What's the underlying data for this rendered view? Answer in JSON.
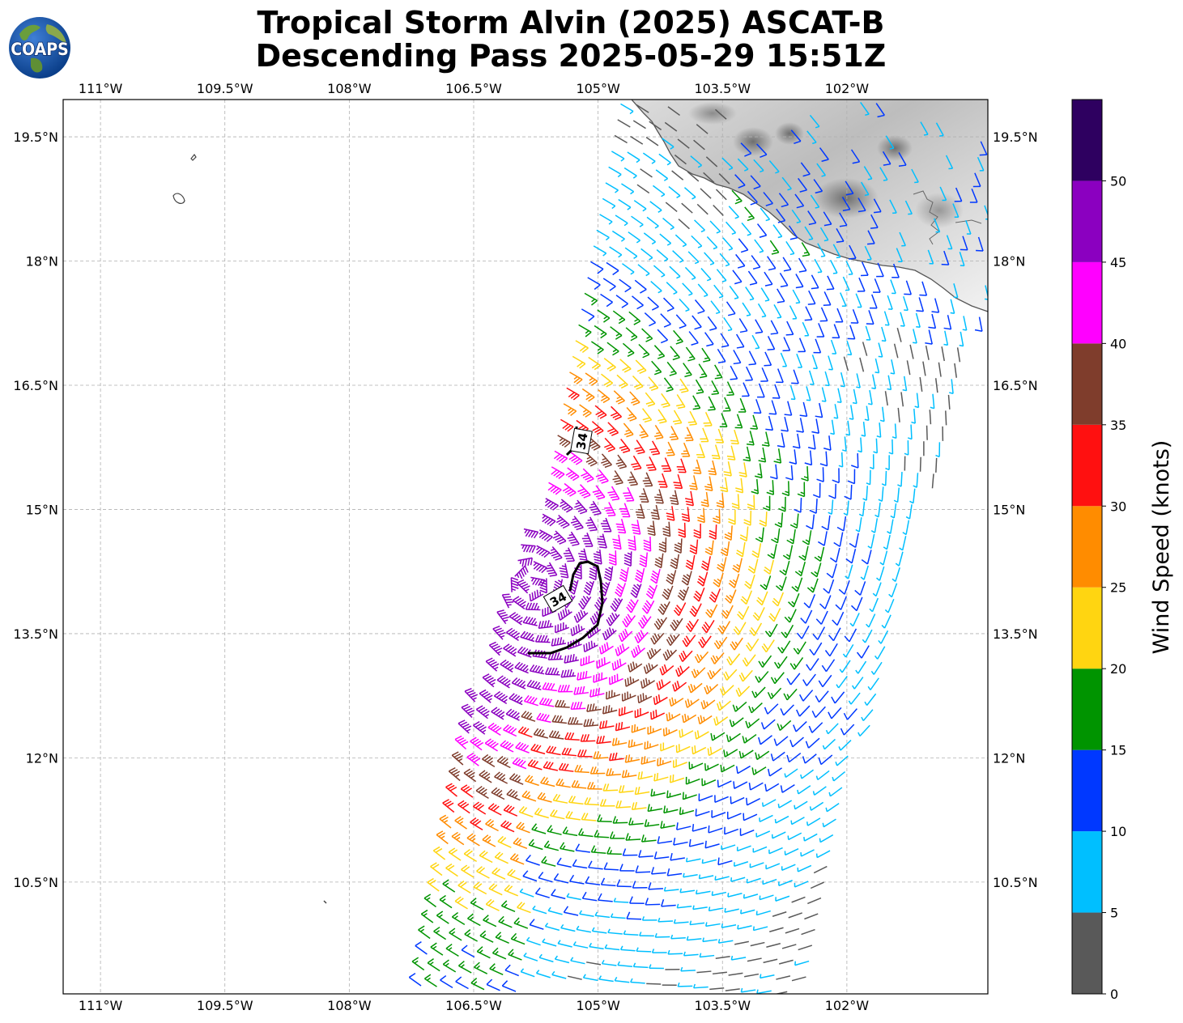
{
  "title_line1": "Tropical Storm Alvin (2025) ASCAT-B",
  "title_line2": "Descending Pass 2025-05-29 15:51Z",
  "logo_text": "COAPS",
  "map": {
    "lon_range": [
      -111.45,
      -100.3
    ],
    "lat_range": [
      9.15,
      19.95
    ],
    "lon_ticks": [
      "111°W",
      "109.5°W",
      "108°W",
      "106.5°W",
      "105°W",
      "103.5°W",
      "102°W"
    ],
    "lon_tick_values": [
      -111,
      -109.5,
      -108,
      -106.5,
      -105,
      -103.5,
      -102
    ],
    "lat_ticks": [
      "19.5°N",
      "18°N",
      "16.5°N",
      "15°N",
      "13.5°N",
      "12°N",
      "10.5°N"
    ],
    "lat_tick_values": [
      19.5,
      18,
      16.5,
      15,
      13.5,
      12,
      10.5
    ],
    "gridlines": true,
    "contour_label": "34",
    "storm_center": [
      -105.8,
      14.1
    ]
  },
  "colorbar": {
    "label": "Wind Speed (knots)",
    "ticks": [
      "0",
      "5",
      "10",
      "15",
      "20",
      "25",
      "30",
      "35",
      "40",
      "45",
      "50"
    ],
    "tick_values": [
      0,
      5,
      10,
      15,
      20,
      25,
      30,
      35,
      40,
      45,
      50
    ],
    "bins": [
      {
        "min": 0,
        "max": 5,
        "color": "#595959"
      },
      {
        "min": 5,
        "max": 10,
        "color": "#00bfff"
      },
      {
        "min": 10,
        "max": 15,
        "color": "#0038ff"
      },
      {
        "min": 15,
        "max": 20,
        "color": "#009400"
      },
      {
        "min": 20,
        "max": 25,
        "color": "#ffd511"
      },
      {
        "min": 25,
        "max": 30,
        "color": "#ff8c00"
      },
      {
        "min": 30,
        "max": 35,
        "color": "#ff1010"
      },
      {
        "min": 35,
        "max": 40,
        "color": "#7f3d2c"
      },
      {
        "min": 40,
        "max": 45,
        "color": "#ff00ff"
      },
      {
        "min": 45,
        "max": 50,
        "color": "#8b00c0"
      },
      {
        "min": 50,
        "max": 55,
        "color": "#2e0060"
      }
    ]
  },
  "colors": {
    "coast": "#555555",
    "grid": "#b0b0b0",
    "contour": "#000000"
  }
}
